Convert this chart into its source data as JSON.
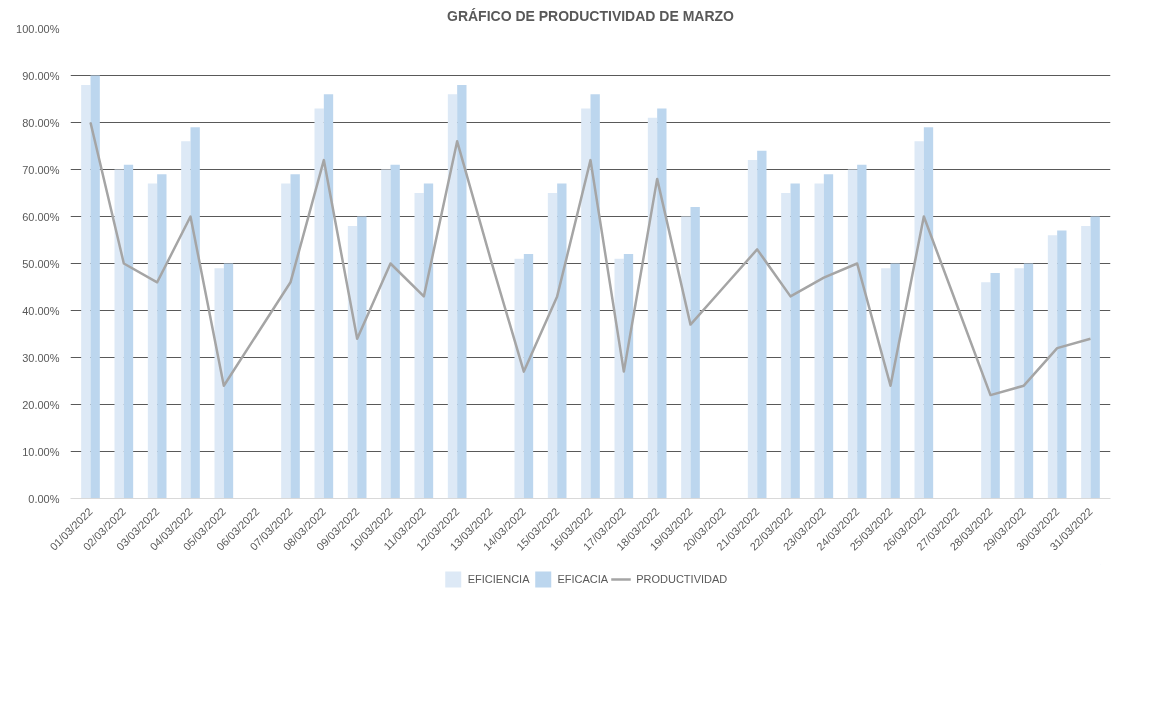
{
  "chart_data": {
    "type": "bar",
    "title": "GRÁFICO DE PRODUCTIVIDAD DE MARZO",
    "categories": [
      "01/03/2022",
      "02/03/2022",
      "03/03/2022",
      "04/03/2022",
      "05/03/2022",
      "06/03/2022",
      "07/03/2022",
      "08/03/2022",
      "09/03/2022",
      "10/03/2022",
      "11/03/2022",
      "12/03/2022",
      "13/03/2022",
      "14/03/2022",
      "15/03/2022",
      "16/03/2022",
      "17/03/2022",
      "18/03/2022",
      "19/03/2022",
      "20/03/2022",
      "21/03/2022",
      "22/03/2022",
      "23/03/2022",
      "24/03/2022",
      "25/03/2022",
      "26/03/2022",
      "27/03/2022",
      "28/03/2022",
      "29/03/2022",
      "30/03/2022",
      "31/03/2022"
    ],
    "series": [
      {
        "name": "EFICIENCIA",
        "color": "#dde9f6",
        "values": [
          88,
          70,
          67,
          76,
          49,
          null,
          67,
          83,
          58,
          70,
          65,
          86,
          null,
          51,
          65,
          83,
          51,
          81,
          60,
          null,
          72,
          65,
          67,
          70,
          49,
          76,
          null,
          46,
          49,
          56,
          58
        ]
      },
      {
        "name": "EFICACIA",
        "color": "#bcd6ee",
        "values": [
          90,
          71,
          69,
          79,
          50,
          null,
          69,
          86,
          60,
          71,
          67,
          88,
          null,
          52,
          67,
          86,
          52,
          83,
          62,
          null,
          74,
          67,
          69,
          71,
          50,
          79,
          null,
          48,
          50,
          57,
          60
        ]
      },
      {
        "name": "PRODUCTIVIDAD",
        "color": "#a5a5a5",
        "type": "line",
        "values": [
          80,
          50,
          46,
          60,
          24,
          35,
          46,
          72,
          34,
          50,
          43,
          76,
          51,
          27,
          43,
          72,
          27,
          68,
          37,
          45,
          53,
          43,
          47,
          50,
          24,
          60,
          41,
          22,
          24,
          32,
          34
        ]
      }
    ],
    "ylim": [
      0,
      100
    ],
    "yticks": [
      {
        "value": 0,
        "label": "0.00%"
      },
      {
        "value": 10,
        "label": "10.00%"
      },
      {
        "value": 20,
        "label": "20.00%"
      },
      {
        "value": 30,
        "label": "30.00%"
      },
      {
        "value": 40,
        "label": "40.00%"
      },
      {
        "value": 50,
        "label": "50.00%"
      },
      {
        "value": 60,
        "label": "60.00%"
      },
      {
        "value": 70,
        "label": "70.00%"
      },
      {
        "value": 80,
        "label": "80.00%"
      },
      {
        "value": 90,
        "label": "90.00%"
      },
      {
        "value": 100,
        "label": "100.00%"
      }
    ],
    "grid": "y",
    "legend": "bottom",
    "marker": "none",
    "line_style": "solid"
  }
}
